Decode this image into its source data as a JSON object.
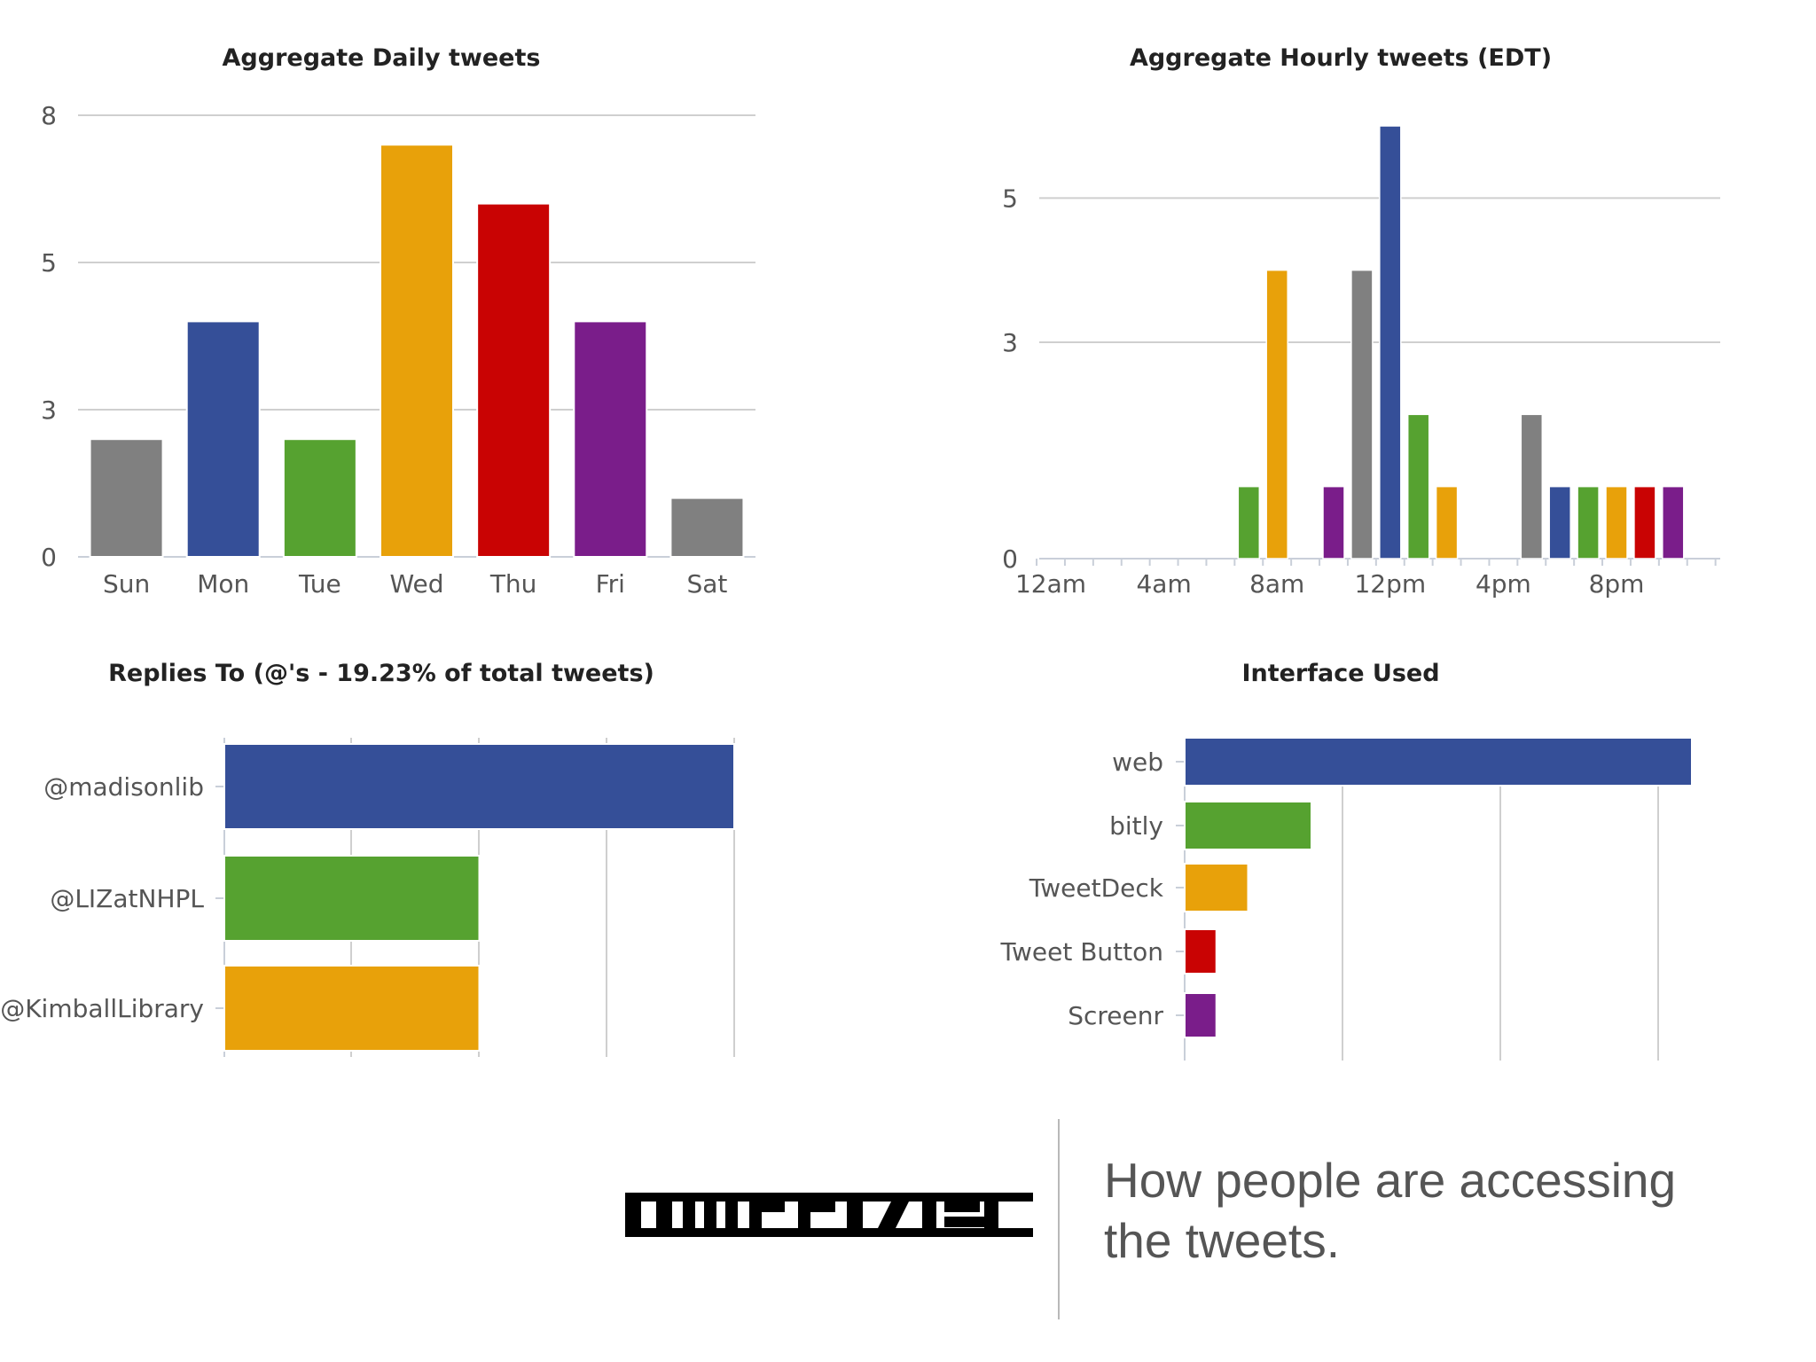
{
  "colors": {
    "gray": "#808080",
    "blue": "#354f98",
    "green": "#56a230",
    "orange": "#e8a10a",
    "red": "#c90303",
    "purple": "#7a1d8a",
    "grid": "#cfcfcf",
    "text": "#555555"
  },
  "chart_data": [
    {
      "type": "bar",
      "title": "Aggregate Daily tweets",
      "categories": [
        "Sun",
        "Mon",
        "Tue",
        "Wed",
        "Thu",
        "Fri",
        "Sat"
      ],
      "values": [
        2,
        4,
        2,
        7,
        6,
        4,
        1
      ],
      "colors": [
        "#808080",
        "#354f98",
        "#56a230",
        "#e8a10a",
        "#c90303",
        "#7a1d8a",
        "#808080"
      ],
      "ylim": [
        0,
        7.5
      ],
      "yticks": [
        "0",
        "3",
        "5",
        "8"
      ],
      "grid": true
    },
    {
      "type": "bar",
      "title": "Aggregate Hourly tweets (EDT)",
      "hours": [
        7,
        8,
        10,
        11,
        12,
        13,
        14,
        17,
        18,
        19,
        20,
        21,
        22
      ],
      "values": [
        1,
        4,
        1,
        4,
        6,
        2,
        1,
        2,
        1,
        1,
        1,
        1,
        1
      ],
      "colors": [
        "#56a230",
        "#e8a10a",
        "#7a1d8a",
        "#808080",
        "#354f98",
        "#56a230",
        "#e8a10a",
        "#808080",
        "#354f98",
        "#56a230",
        "#e8a10a",
        "#c90303",
        "#7a1d8a"
      ],
      "xticks": [
        "12am",
        "4am",
        "8am",
        "12pm",
        "4pm",
        "8pm"
      ],
      "yticks": [
        "0",
        "3",
        "5"
      ],
      "ylim": [
        0,
        6
      ],
      "grid": true
    },
    {
      "type": "bar",
      "orientation": "horizontal",
      "title": "Replies To (@'s - 19.23% of total tweets)",
      "categories": [
        "@madisonlib",
        "@LIZatNHPL",
        "@KimballLibrary"
      ],
      "values": [
        2,
        1,
        1
      ],
      "colors": [
        "#354f98",
        "#56a230",
        "#e8a10a"
      ],
      "xlim": [
        0,
        2
      ]
    },
    {
      "type": "bar",
      "orientation": "horizontal",
      "title": "Interface Used",
      "categories": [
        "web",
        "bitly",
        "TweetDeck",
        "Tweet Button",
        "Screenr"
      ],
      "values": [
        16,
        4,
        2,
        1,
        1
      ],
      "colors": [
        "#354f98",
        "#56a230",
        "#e8a10a",
        "#c90303",
        "#7a1d8a"
      ],
      "xlim": [
        0,
        16
      ]
    }
  ],
  "logo": {
    "text": "tweetstats"
  },
  "caption": {
    "line1": "How people are accessing",
    "line2": "the tweets."
  }
}
